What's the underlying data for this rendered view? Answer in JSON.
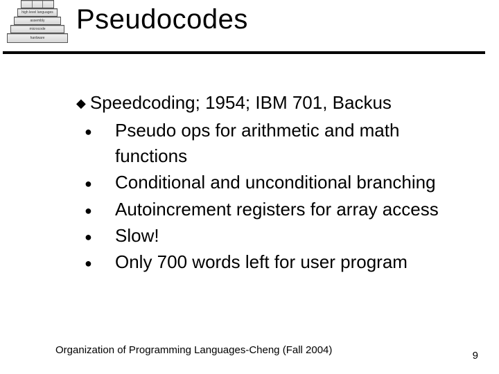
{
  "colors": {
    "background": "#ffffff",
    "text": "#000000",
    "rule": "#000000"
  },
  "typography": {
    "title_fontsize": 40,
    "body_fontsize": 26,
    "footer_fontsize": 15
  },
  "pyramid": {
    "layers": [
      {
        "cells": [
          "",
          "",
          ""
        ]
      },
      {
        "label": "high level languages"
      },
      {
        "label": "assembly"
      },
      {
        "label": "microcode"
      },
      {
        "label": "hardware"
      }
    ]
  },
  "title": "Pseudocodes",
  "content": {
    "main_bullet_glyph": "◆",
    "sub_bullet_glyph": "●",
    "main": "Speedcoding; 1954; IBM 701, Backus",
    "subs": [
      "Pseudo ops for arithmetic and math functions",
      "Conditional and unconditional branching",
      "Autoincrement registers for array access",
      "Slow!",
      "Only 700 words left for user program"
    ]
  },
  "footer": "Organization of Programming Languages-Cheng (Fall 2004)",
  "page_number": "9"
}
